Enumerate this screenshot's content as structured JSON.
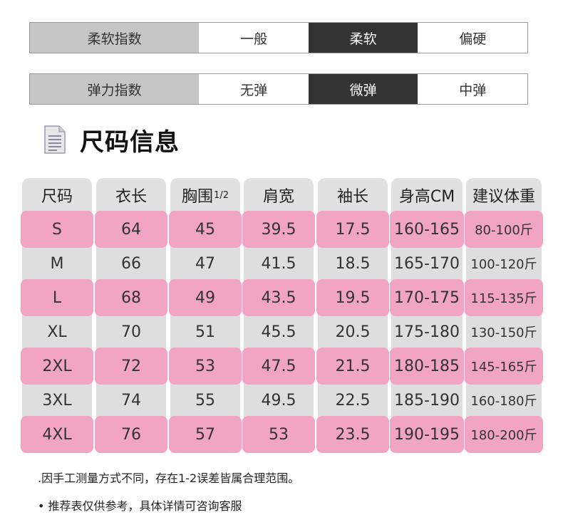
{
  "softness": {
    "label": "柔软指数",
    "options": [
      {
        "label": "一般",
        "active": false
      },
      {
        "label": "柔软",
        "active": true
      },
      {
        "label": "偏硬",
        "active": false
      }
    ]
  },
  "elasticity": {
    "label": "弹力指数",
    "options": [
      {
        "label": "无弹",
        "active": false
      },
      {
        "label": "微弹",
        "active": true
      },
      {
        "label": "中弹",
        "active": false
      }
    ]
  },
  "section": {
    "title": "尺码信息",
    "icon": "document-icon"
  },
  "table": {
    "headers": {
      "size": "尺码",
      "length": "衣长",
      "chest": "胸围",
      "chest_fraction": "1/2",
      "shoulder": "肩宽",
      "sleeve": "袖长",
      "height": "身高CM",
      "weight": "建议体重"
    },
    "rows": [
      {
        "size": "S",
        "length": "64",
        "chest": "45",
        "shoulder": "39.5",
        "sleeve": "17.5",
        "height": "160-165",
        "weight": "80-100斤"
      },
      {
        "size": "M",
        "length": "66",
        "chest": "47",
        "shoulder": "41.5",
        "sleeve": "18.5",
        "height": "165-170",
        "weight": "100-120斤"
      },
      {
        "size": "L",
        "length": "68",
        "chest": "49",
        "shoulder": "43.5",
        "sleeve": "19.5",
        "height": "170-175",
        "weight": "115-135斤"
      },
      {
        "size": "XL",
        "length": "70",
        "chest": "51",
        "shoulder": "45.5",
        "sleeve": "20.5",
        "height": "175-180",
        "weight": "130-150斤"
      },
      {
        "size": "2XL",
        "length": "72",
        "chest": "53",
        "shoulder": "47.5",
        "sleeve": "21.5",
        "height": "180-185",
        "weight": "145-165斤"
      },
      {
        "size": "3XL",
        "length": "74",
        "chest": "55",
        "shoulder": "49.5",
        "sleeve": "22.5",
        "height": "185-190",
        "weight": "160-180斤"
      },
      {
        "size": "4XL",
        "length": "76",
        "chest": "57",
        "shoulder": "53",
        "sleeve": "23.5",
        "height": "190-195",
        "weight": "180-200斤"
      }
    ]
  },
  "notes": [
    ".因手工测量方式不同，存在1-2误差皆属合理范围。",
    "• 推荐表仅供参考，具体详情可咨询客服"
  ],
  "colors": {
    "pink": "#f2a4c4",
    "gray": "#e1e1e1",
    "active": "#333333",
    "label_bg": "#c6c6c6"
  }
}
